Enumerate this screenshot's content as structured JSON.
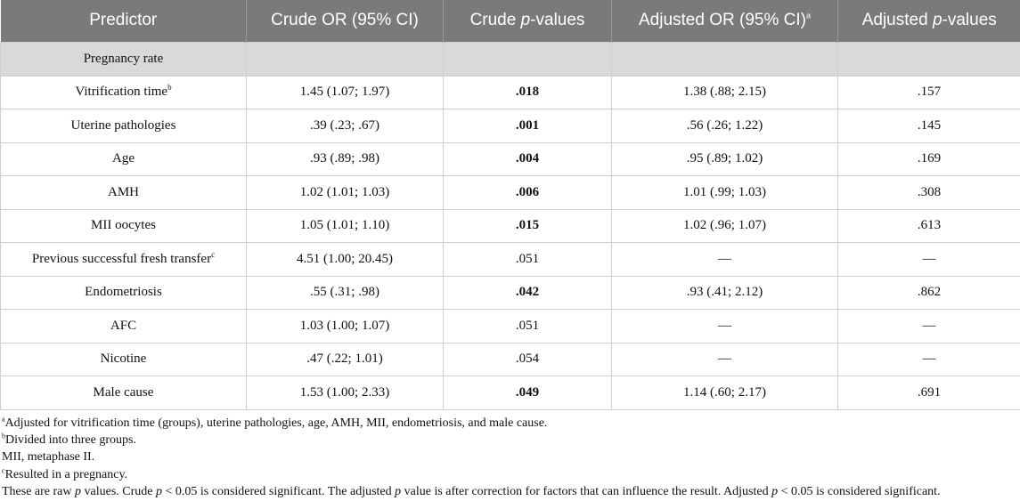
{
  "headers": {
    "predictor": "Predictor",
    "crude_or": "Crude OR (95% CI)",
    "crude_p_prefix": "Crude ",
    "crude_p_italic": "p",
    "crude_p_suffix": "-values",
    "adj_or": "Adjusted OR (95% CI)",
    "adj_or_sup": "a",
    "adj_p_prefix": "Adjusted ",
    "adj_p_italic": "p",
    "adj_p_suffix": "-values"
  },
  "section": "Pregnancy rate",
  "rows": [
    {
      "label": "Vitrification time",
      "sup": "b",
      "crude_or": "1.45 (1.07; 1.97)",
      "crude_p": ".018",
      "bold": true,
      "adj_or": "1.38 (.88; 2.15)",
      "adj_p": ".157"
    },
    {
      "label": "Uterine pathologies",
      "sup": "",
      "crude_or": ".39 (.23; .67)",
      "crude_p": ".001",
      "bold": true,
      "adj_or": ".56 (.26; 1.22)",
      "adj_p": ".145"
    },
    {
      "label": "Age",
      "sup": "",
      "crude_or": ".93 (.89; .98)",
      "crude_p": ".004",
      "bold": true,
      "adj_or": ".95 (.89; 1.02)",
      "adj_p": ".169"
    },
    {
      "label": "AMH",
      "sup": "",
      "crude_or": "1.02 (1.01; 1.03)",
      "crude_p": ".006",
      "bold": true,
      "adj_or": "1.01 (.99; 1.03)",
      "adj_p": ".308"
    },
    {
      "label": "MII oocytes",
      "sup": "",
      "crude_or": "1.05 (1.01; 1.10)",
      "crude_p": ".015",
      "bold": true,
      "adj_or": "1.02 (.96; 1.07)",
      "adj_p": ".613"
    },
    {
      "label": "Previous successful fresh transfer",
      "sup": "c",
      "crude_or": "4.51 (1.00; 20.45)",
      "crude_p": ".051",
      "bold": false,
      "adj_or": "—",
      "adj_p": "—"
    },
    {
      "label": "Endometriosis",
      "sup": "",
      "crude_or": ".55 (.31; .98)",
      "crude_p": ".042",
      "bold": true,
      "adj_or": ".93 (.41; 2.12)",
      "adj_p": ".862"
    },
    {
      "label": "AFC",
      "sup": "",
      "crude_or": "1.03 (1.00; 1.07)",
      "crude_p": ".051",
      "bold": false,
      "adj_or": "—",
      "adj_p": "—"
    },
    {
      "label": "Nicotine",
      "sup": "",
      "crude_or": ".47 (.22; 1.01)",
      "crude_p": ".054",
      "bold": false,
      "adj_or": "—",
      "adj_p": "—"
    },
    {
      "label": "Male cause",
      "sup": "",
      "crude_or": "1.53 (1.00; 2.33)",
      "crude_p": ".049",
      "bold": true,
      "adj_or": "1.14 (.60; 2.17)",
      "adj_p": ".691"
    }
  ],
  "footnotes": {
    "a_sup": "a",
    "a_text": "Adjusted for vitrification time (groups), uterine pathologies, age, AMH, MII, endometriosis, and male cause.",
    "b_sup": "b",
    "b_text": "Divided into three groups.",
    "mii_text": "MII, metaphase II.",
    "c_sup": "c",
    "c_text": "Resulted in a pregnancy.",
    "raw_1": "These are raw ",
    "raw_p1": "p",
    "raw_2": " values. Crude ",
    "raw_p2": "p",
    "raw_3": " < 0.05 is considered significant. The adjusted ",
    "raw_p3": "p",
    "raw_4": " value is after correction for factors that can influence the result. Adjusted ",
    "raw_p4": "p",
    "raw_5": " < 0.05 is considered significant."
  }
}
